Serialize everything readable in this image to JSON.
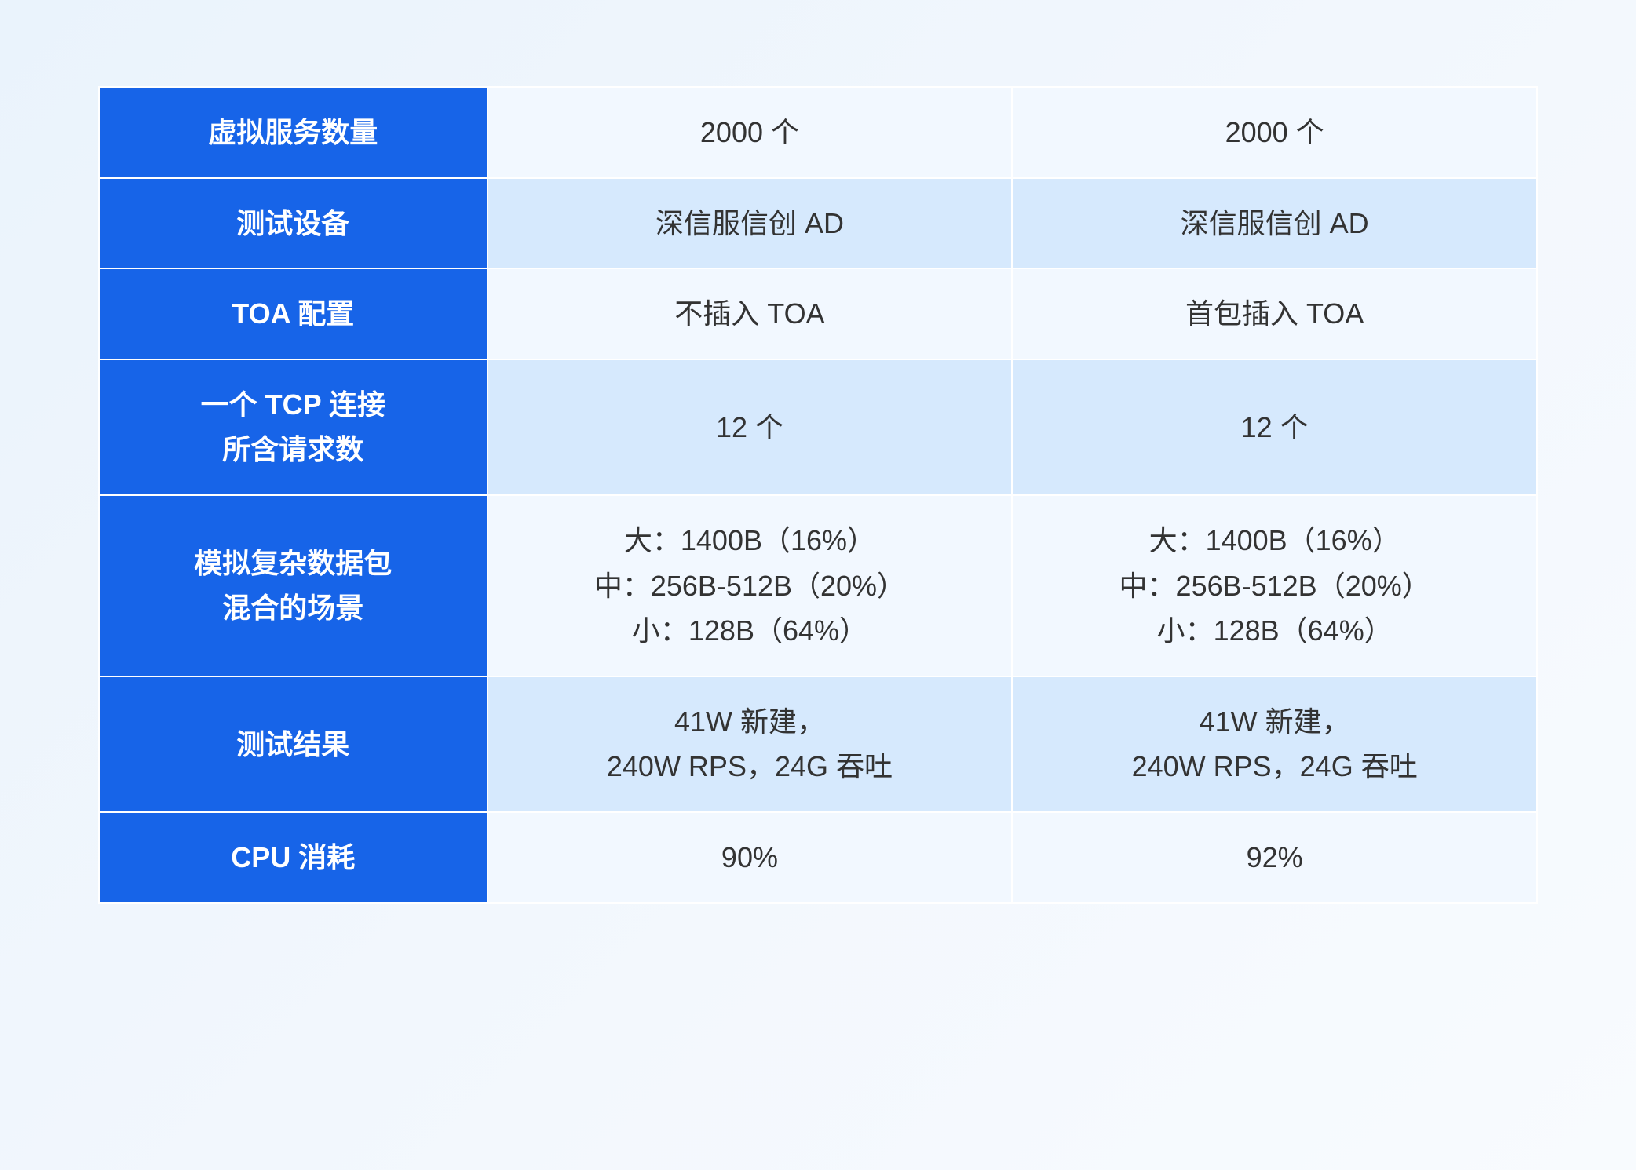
{
  "table": {
    "type": "table",
    "header_bg": "#1764e8",
    "header_text_color": "#ffffff",
    "cell_bg_light": "#f2f8ff",
    "cell_bg_dark": "#d6e9fd",
    "cell_text_color": "#333333",
    "border_color": "#ffffff",
    "font_size_pt": 27,
    "columns": [
      "label",
      "col1",
      "col2"
    ],
    "column_widths_pct": [
      27,
      36.5,
      36.5
    ],
    "rows": [
      {
        "label": "虚拟服务数量",
        "col1": "2000 个",
        "col2": "2000 个",
        "shade": "light"
      },
      {
        "label": "测试设备",
        "col1": "深信服信创 AD",
        "col2": "深信服信创 AD",
        "shade": "dark"
      },
      {
        "label": "TOA 配置",
        "col1": "不插入 TOA",
        "col2": "首包插入 TOA",
        "shade": "light"
      },
      {
        "label": "一个 TCP 连接\n所含请求数",
        "col1": "12 个",
        "col2": "12 个",
        "shade": "dark"
      },
      {
        "label": "模拟复杂数据包\n混合的场景",
        "col1": "大：1400B（16%）\n中：256B-512B（20%）\n小：128B（64%）",
        "col2": "大：1400B（16%）\n中：256B-512B（20%）\n小：128B（64%）",
        "shade": "light"
      },
      {
        "label": "测试结果",
        "col1": "41W 新建，\n240W RPS，24G 吞吐",
        "col2": "41W 新建，\n240W RPS，24G 吞吐",
        "shade": "dark"
      },
      {
        "label": "CPU 消耗",
        "col1": "90%",
        "col2": "92%",
        "shade": "light"
      }
    ]
  },
  "background_gradient": [
    "#eaf3fc",
    "#f2f7fd",
    "#f8fbfe"
  ]
}
